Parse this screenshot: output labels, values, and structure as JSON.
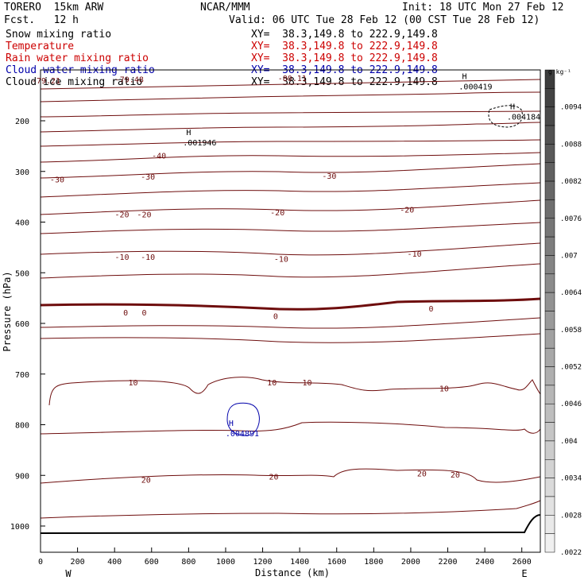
{
  "header": {
    "model": "TORERO  15km ARW",
    "center": "NCAR/MMM",
    "init": "Init: 18 UTC Mon 27 Feb 12",
    "fcst": "Fcst.   12 h",
    "valid": "Valid: 06 UTC Tue 28 Feb 12 (00 CST Tue 28 Feb 12)",
    "fields": [
      {
        "name": "Snow mixing ratio",
        "xy": "XY=  38.3,149.8 to 222.9,149.8",
        "color": "#000000"
      },
      {
        "name": "Temperature",
        "xy": "XY=  38.3,149.8 to 222.9,149.8",
        "color": "#cc0000"
      },
      {
        "name": "Rain water mixing ratio",
        "xy": "XY=  38.3,149.8 to 222.9,149.8",
        "color": "#cc0000"
      },
      {
        "name": "Cloud water mixing ratio",
        "xy": "XY=  38.3,149.8 to 222.9,149.8",
        "color": "#0000aa"
      },
      {
        "name": "Cloud ice mixing ratio",
        "xy": "XY=  38.3,149.8 to 222.9,149.8",
        "color": "#000000"
      }
    ]
  },
  "chart_data": {
    "type": "contour",
    "xlabel": "Distance (km)",
    "ylabel": "Pressure (hPa)",
    "xlim": [
      0,
      2700
    ],
    "ylim": [
      1050,
      100
    ],
    "x_ticks": [
      0,
      200,
      400,
      600,
      800,
      1000,
      1200,
      1400,
      1600,
      1800,
      2000,
      2200,
      2400,
      2600
    ],
    "y_ticks": [
      200,
      300,
      400,
      500,
      600,
      700,
      800,
      900,
      1000
    ],
    "end_labels": {
      "left": "W",
      "right": "E"
    },
    "colorbar": {
      "unit": "g kg⁻¹",
      "labels": [
        ".0094",
        ".0088",
        ".0082",
        ".0076",
        ".007",
        ".0064",
        ".0058",
        ".0052",
        ".0046",
        ".004",
        ".0034",
        ".0028",
        ".0022"
      ]
    },
    "temperature_contour_labels": [
      {
        "x": 30,
        "p": 120,
        "text": "-79.21"
      },
      {
        "x": 480,
        "p": 118,
        "text": "-79.48"
      },
      {
        "x": 1360,
        "p": 115,
        "text": "-80.11"
      },
      {
        "x": 640,
        "p": 268,
        "text": "-40"
      },
      {
        "x": 90,
        "p": 315,
        "text": "-30"
      },
      {
        "x": 580,
        "p": 310,
        "text": "-30"
      },
      {
        "x": 1560,
        "p": 308,
        "text": "-30"
      },
      {
        "x": 440,
        "p": 384,
        "text": "-20"
      },
      {
        "x": 560,
        "p": 384,
        "text": "-20"
      },
      {
        "x": 1280,
        "p": 380,
        "text": "-20"
      },
      {
        "x": 1980,
        "p": 375,
        "text": "-20"
      },
      {
        "x": 440,
        "p": 468,
        "text": "-10"
      },
      {
        "x": 580,
        "p": 468,
        "text": "-10"
      },
      {
        "x": 1300,
        "p": 472,
        "text": "-10"
      },
      {
        "x": 2020,
        "p": 462,
        "text": "-10"
      },
      {
        "x": 460,
        "p": 578,
        "text": "0"
      },
      {
        "x": 560,
        "p": 578,
        "text": "0"
      },
      {
        "x": 1270,
        "p": 585,
        "text": "0"
      },
      {
        "x": 2110,
        "p": 570,
        "text": "0"
      },
      {
        "x": 500,
        "p": 716,
        "text": "10"
      },
      {
        "x": 1250,
        "p": 716,
        "text": "10"
      },
      {
        "x": 1440,
        "p": 716,
        "text": "10"
      },
      {
        "x": 2180,
        "p": 728,
        "text": "10"
      },
      {
        "x": 570,
        "p": 908,
        "text": "20"
      },
      {
        "x": 1260,
        "p": 902,
        "text": "20"
      },
      {
        "x": 2060,
        "p": 896,
        "text": "20"
      },
      {
        "x": 2240,
        "p": 898,
        "text": "20"
      }
    ],
    "extrema": [
      {
        "x": 800,
        "p": 228,
        "mark": "H",
        "value": ".001946",
        "field": "Cloud ice mixing ratio"
      },
      {
        "x": 2290,
        "p": 118,
        "mark": "H",
        "value": ".000419",
        "field": "Cloud ice mixing ratio"
      },
      {
        "x": 2550,
        "p": 177,
        "mark": "H",
        "value": ".004184",
        "field": "Snow mixing ratio"
      },
      {
        "x": 1030,
        "p": 802,
        "mark": "H",
        "value": ".004891",
        "field": "Cloud water mixing ratio"
      }
    ]
  }
}
